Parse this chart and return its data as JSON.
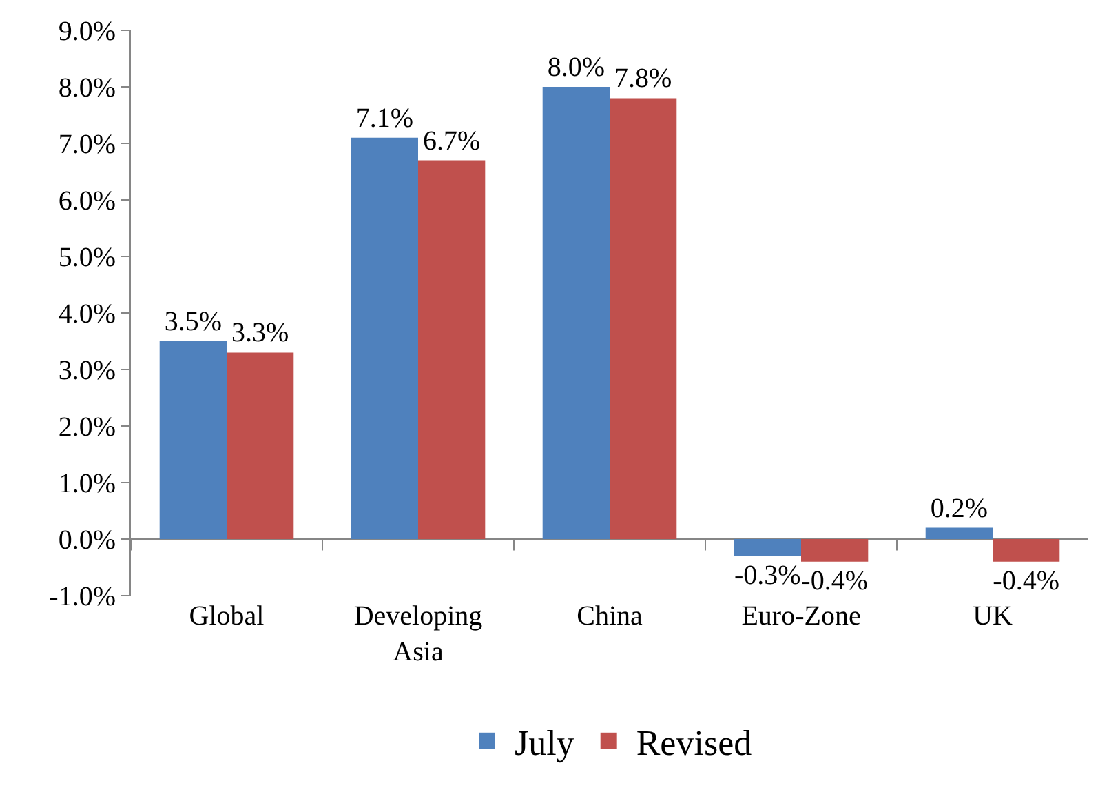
{
  "chart_data": {
    "type": "bar",
    "categories": [
      "Global",
      "Developing\nAsia",
      "China",
      "Euro-Zone",
      "UK"
    ],
    "series": [
      {
        "name": "July",
        "color": "#4f81bd",
        "values": [
          3.5,
          7.1,
          8.0,
          -0.3,
          0.2
        ],
        "value_labels": [
          "3.5%",
          "7.1%",
          "8.0%",
          "-0.3%",
          "0.2%"
        ]
      },
      {
        "name": "Revised",
        "color": "#c0504d",
        "values": [
          3.3,
          6.7,
          7.8,
          -0.4,
          -0.4
        ],
        "value_labels": [
          "3.3%",
          "6.7%",
          "7.8%",
          "-0.4%",
          "-0.4%"
        ]
      }
    ],
    "ylim": [
      -1,
      9
    ],
    "yticks": [
      {
        "value": -1,
        "label": "-1.0%"
      },
      {
        "value": 0,
        "label": "0.0%"
      },
      {
        "value": 1,
        "label": "1.0%"
      },
      {
        "value": 2,
        "label": "2.0%"
      },
      {
        "value": 3,
        "label": "3.0%"
      },
      {
        "value": 4,
        "label": "4.0%"
      },
      {
        "value": 5,
        "label": "5.0%"
      },
      {
        "value": 6,
        "label": "6.0%"
      },
      {
        "value": 7,
        "label": "7.0%"
      },
      {
        "value": 8,
        "label": "8.0%"
      },
      {
        "value": 9,
        "label": "9.0%"
      }
    ],
    "legend": "bottom"
  }
}
